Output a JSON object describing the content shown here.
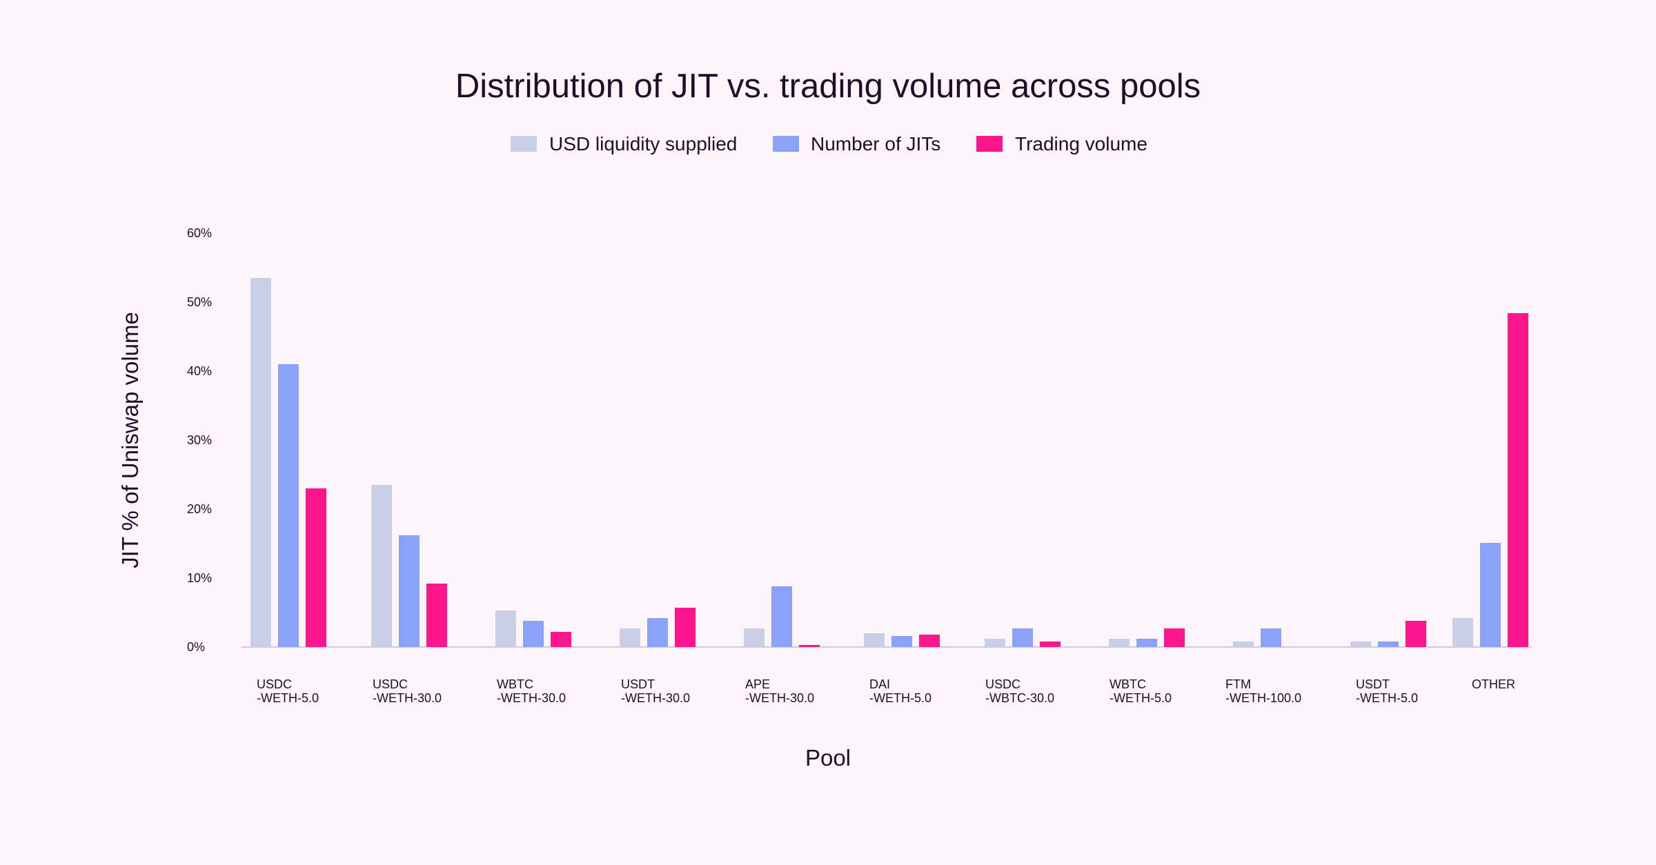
{
  "chart_data": {
    "type": "bar",
    "title": "Distribution of JIT vs. trading volume across pools",
    "xlabel": "Pool",
    "ylabel": "JIT % of Uniswap volume",
    "ylim": [
      0,
      60
    ],
    "yticks": [
      "0%",
      "10%",
      "20%",
      "30%",
      "40%",
      "50%",
      "60%"
    ],
    "ytick_values": [
      0,
      10,
      20,
      30,
      40,
      50,
      60
    ],
    "grid": false,
    "legend_position": "top-center",
    "categories": [
      [
        "USDC",
        "-WETH-5.0"
      ],
      [
        "USDC",
        "-WETH-30.0"
      ],
      [
        "WBTC",
        "-WETH-30.0"
      ],
      [
        "USDT",
        "-WETH-30.0"
      ],
      [
        "APE",
        "-WETH-30.0"
      ],
      [
        "DAI",
        "-WETH-5.0"
      ],
      [
        "USDC",
        "-WBTC-30.0"
      ],
      [
        "WBTC",
        "-WETH-5.0"
      ],
      [
        "FTM",
        "-WETH-100.0"
      ],
      [
        "USDT",
        "-WETH-5.0"
      ],
      [
        "OTHER"
      ]
    ],
    "series": [
      {
        "name": "USD liquidity supplied",
        "color": "#c9cfe6",
        "values": [
          53.5,
          23.5,
          5.3,
          2.7,
          2.7,
          2.0,
          1.2,
          1.2,
          0.8,
          0.8,
          4.2
        ]
      },
      {
        "name": "Number of JITs",
        "color": "#8aa2f8",
        "values": [
          41.0,
          16.2,
          3.8,
          4.2,
          8.8,
          1.6,
          2.7,
          1.2,
          2.7,
          0.8,
          15.1
        ]
      },
      {
        "name": "Trading volume",
        "color": "#fb168e",
        "values": [
          23.0,
          9.2,
          2.2,
          5.7,
          0.3,
          1.8,
          0.8,
          2.7,
          0.0,
          3.8,
          48.4
        ]
      }
    ]
  }
}
